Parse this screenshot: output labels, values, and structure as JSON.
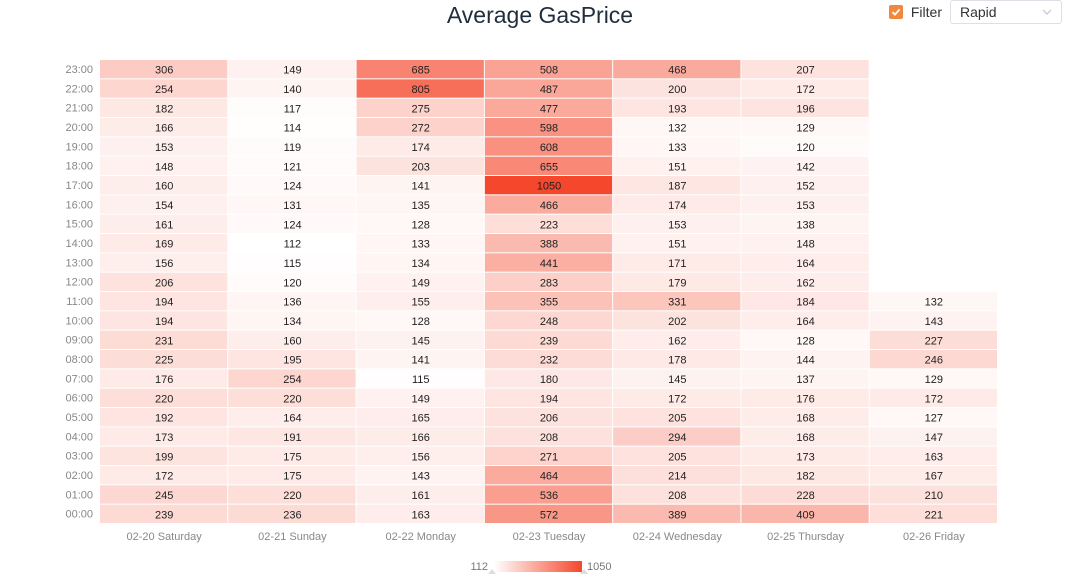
{
  "filter": {
    "label": "Filter",
    "checked": true,
    "selected": "Rapid"
  },
  "colors": {
    "low": "#ffffff",
    "high": "#f5472b",
    "accent": "#f0883e"
  },
  "chart_data": {
    "type": "heatmap",
    "title": "Average GasPrice",
    "x_categories": [
      "02-20 Saturday",
      "02-21 Sunday",
      "02-22 Monday",
      "02-23 Tuesday",
      "02-24 Wednesday",
      "02-25 Thursday",
      "02-26 Friday"
    ],
    "y_categories": [
      "00:00",
      "01:00",
      "02:00",
      "03:00",
      "04:00",
      "05:00",
      "06:00",
      "07:00",
      "08:00",
      "09:00",
      "10:00",
      "11:00",
      "12:00",
      "13:00",
      "14:00",
      "15:00",
      "16:00",
      "17:00",
      "18:00",
      "19:00",
      "20:00",
      "21:00",
      "22:00",
      "23:00"
    ],
    "values": [
      [
        239,
        236,
        163,
        572,
        389,
        409,
        221
      ],
      [
        245,
        220,
        161,
        536,
        208,
        228,
        210
      ],
      [
        172,
        175,
        143,
        464,
        214,
        182,
        167
      ],
      [
        199,
        175,
        156,
        271,
        205,
        173,
        163
      ],
      [
        173,
        191,
        166,
        208,
        294,
        168,
        147
      ],
      [
        192,
        164,
        165,
        206,
        205,
        168,
        127
      ],
      [
        220,
        220,
        149,
        194,
        172,
        176,
        172
      ],
      [
        176,
        254,
        115,
        180,
        145,
        137,
        129
      ],
      [
        225,
        195,
        141,
        232,
        178,
        144,
        246
      ],
      [
        231,
        160,
        145,
        239,
        162,
        128,
        227
      ],
      [
        194,
        134,
        128,
        248,
        202,
        164,
        143
      ],
      [
        194,
        136,
        155,
        355,
        331,
        184,
        132
      ],
      [
        206,
        120,
        149,
        283,
        179,
        162,
        null
      ],
      [
        156,
        115,
        134,
        441,
        171,
        164,
        null
      ],
      [
        169,
        112,
        133,
        388,
        151,
        148,
        null
      ],
      [
        161,
        124,
        128,
        223,
        153,
        138,
        null
      ],
      [
        154,
        131,
        135,
        466,
        174,
        153,
        null
      ],
      [
        160,
        124,
        141,
        1050,
        187,
        152,
        null
      ],
      [
        148,
        121,
        203,
        655,
        151,
        142,
        null
      ],
      [
        153,
        119,
        174,
        608,
        133,
        120,
        null
      ],
      [
        166,
        114,
        272,
        598,
        132,
        129,
        null
      ],
      [
        182,
        117,
        275,
        477,
        193,
        196,
        null
      ],
      [
        254,
        140,
        805,
        487,
        200,
        172,
        null
      ],
      [
        306,
        149,
        685,
        508,
        468,
        207,
        null
      ]
    ],
    "visual_map": {
      "min": 112,
      "max": 1050
    }
  }
}
